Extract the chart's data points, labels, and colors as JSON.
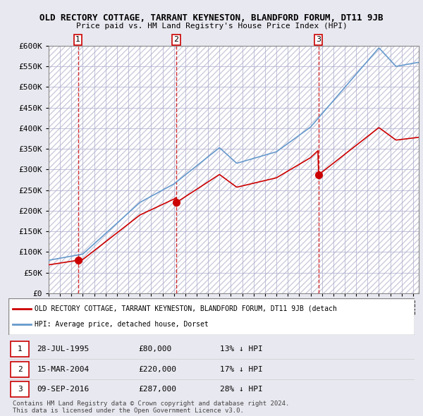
{
  "title1": "OLD RECTORY COTTAGE, TARRANT KEYNESTON, BLANDFORD FORUM, DT11 9JB",
  "title2": "Price paid vs. HM Land Registry's House Price Index (HPI)",
  "ylabel_ticks": [
    "£0",
    "£50K",
    "£100K",
    "£150K",
    "£200K",
    "£250K",
    "£300K",
    "£350K",
    "£400K",
    "£450K",
    "£500K",
    "£550K",
    "£600K"
  ],
  "ytick_values": [
    0,
    50000,
    100000,
    150000,
    200000,
    250000,
    300000,
    350000,
    400000,
    450000,
    500000,
    550000,
    600000
  ],
  "sale_dates_num": [
    1995.57,
    2004.21,
    2016.69
  ],
  "sale_prices": [
    80000,
    220000,
    287000
  ],
  "sale_labels": [
    "1",
    "2",
    "3"
  ],
  "property_color": "#cc0000",
  "hpi_color": "#6699cc",
  "background_color": "#e8e8f0",
  "plot_bg_color": "#f5f5ff",
  "legend_label_property": "OLD RECTORY COTTAGE, TARRANT KEYNESTON, BLANDFORD FORUM, DT11 9JB (detach",
  "legend_label_hpi": "HPI: Average price, detached house, Dorset",
  "table_data": [
    [
      "1",
      "28-JUL-1995",
      "£80,000",
      "13% ↓ HPI"
    ],
    [
      "2",
      "15-MAR-2004",
      "£220,000",
      "17% ↓ HPI"
    ],
    [
      "3",
      "09-SEP-2016",
      "£287,000",
      "28% ↓ HPI"
    ]
  ],
  "footer": "Contains HM Land Registry data © Crown copyright and database right 2024.\nThis data is licensed under the Open Government Licence v3.0.",
  "xmin": 1993.0,
  "xmax": 2025.5,
  "ymin": 0,
  "ymax": 600000
}
